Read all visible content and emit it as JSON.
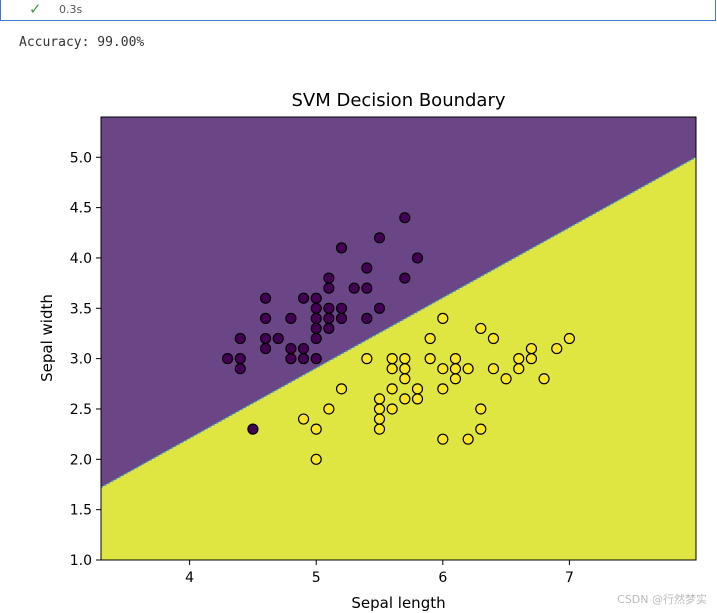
{
  "cell": {
    "status_icon": "check-icon",
    "exec_time": "0.3s"
  },
  "output": {
    "text": "Accuracy: 99.00%"
  },
  "watermark": "CSDN @行然梦实",
  "colors": {
    "region_class0": "#6a4686",
    "region_class1": "#dfe642",
    "point_class0": "#440154",
    "point_class1": "#fde725",
    "boundary": "#44a0c0"
  },
  "chart_data": {
    "type": "scatter",
    "title": "SVM Decision Boundary",
    "xlabel": "Sepal length",
    "ylabel": "Sepal width",
    "xlim": [
      3.3,
      8.0
    ],
    "ylim": [
      1.0,
      5.4
    ],
    "xticks": [
      "4",
      "5",
      "6",
      "7"
    ],
    "yticks": [
      "1.0",
      "1.5",
      "2.0",
      "2.5",
      "3.0",
      "3.5",
      "4.0",
      "4.5",
      "5.0"
    ],
    "grid": false,
    "decision_boundary": {
      "x": [
        3.3,
        8.0
      ],
      "y": [
        1.72,
        5.0
      ]
    },
    "series": [
      {
        "class": 0,
        "points": [
          [
            4.3,
            3.0
          ],
          [
            4.4,
            2.9
          ],
          [
            4.4,
            3.0
          ],
          [
            4.4,
            3.2
          ],
          [
            4.5,
            2.3
          ],
          [
            4.6,
            3.1
          ],
          [
            4.6,
            3.2
          ],
          [
            4.6,
            3.4
          ],
          [
            4.6,
            3.6
          ],
          [
            4.7,
            3.2
          ],
          [
            4.8,
            3.0
          ],
          [
            4.8,
            3.1
          ],
          [
            4.8,
            3.4
          ],
          [
            4.9,
            3.0
          ],
          [
            4.9,
            3.1
          ],
          [
            4.9,
            3.6
          ],
          [
            5.0,
            3.0
          ],
          [
            5.0,
            3.2
          ],
          [
            5.0,
            3.3
          ],
          [
            5.0,
            3.4
          ],
          [
            5.0,
            3.5
          ],
          [
            5.0,
            3.6
          ],
          [
            5.1,
            3.3
          ],
          [
            5.1,
            3.4
          ],
          [
            5.1,
            3.5
          ],
          [
            5.1,
            3.7
          ],
          [
            5.1,
            3.8
          ],
          [
            5.2,
            3.4
          ],
          [
            5.2,
            3.5
          ],
          [
            5.2,
            4.1
          ],
          [
            5.3,
            3.7
          ],
          [
            5.4,
            3.4
          ],
          [
            5.4,
            3.7
          ],
          [
            5.4,
            3.9
          ],
          [
            5.5,
            3.5
          ],
          [
            5.5,
            4.2
          ],
          [
            5.7,
            3.8
          ],
          [
            5.7,
            4.4
          ],
          [
            5.8,
            4.0
          ]
        ]
      },
      {
        "class": 1,
        "points": [
          [
            4.9,
            2.4
          ],
          [
            5.0,
            2.0
          ],
          [
            5.0,
            2.3
          ],
          [
            5.1,
            2.5
          ],
          [
            5.2,
            2.7
          ],
          [
            5.4,
            3.0
          ],
          [
            5.5,
            2.3
          ],
          [
            5.5,
            2.4
          ],
          [
            5.5,
            2.5
          ],
          [
            5.5,
            2.6
          ],
          [
            5.6,
            2.5
          ],
          [
            5.6,
            2.7
          ],
          [
            5.6,
            2.9
          ],
          [
            5.6,
            3.0
          ],
          [
            5.7,
            2.6
          ],
          [
            5.7,
            2.8
          ],
          [
            5.7,
            2.9
          ],
          [
            5.7,
            3.0
          ],
          [
            5.8,
            2.6
          ],
          [
            5.8,
            2.7
          ],
          [
            5.9,
            3.0
          ],
          [
            5.9,
            3.2
          ],
          [
            6.0,
            2.2
          ],
          [
            6.0,
            2.7
          ],
          [
            6.0,
            2.9
          ],
          [
            6.0,
            3.4
          ],
          [
            6.1,
            2.8
          ],
          [
            6.1,
            2.9
          ],
          [
            6.1,
            3.0
          ],
          [
            6.2,
            2.2
          ],
          [
            6.2,
            2.9
          ],
          [
            6.3,
            2.3
          ],
          [
            6.3,
            2.5
          ],
          [
            6.3,
            3.3
          ],
          [
            6.4,
            2.9
          ],
          [
            6.4,
            3.2
          ],
          [
            6.5,
            2.8
          ],
          [
            6.6,
            2.9
          ],
          [
            6.6,
            3.0
          ],
          [
            6.7,
            3.0
          ],
          [
            6.7,
            3.1
          ],
          [
            6.8,
            2.8
          ],
          [
            6.9,
            3.1
          ],
          [
            7.0,
            3.2
          ]
        ]
      }
    ]
  }
}
